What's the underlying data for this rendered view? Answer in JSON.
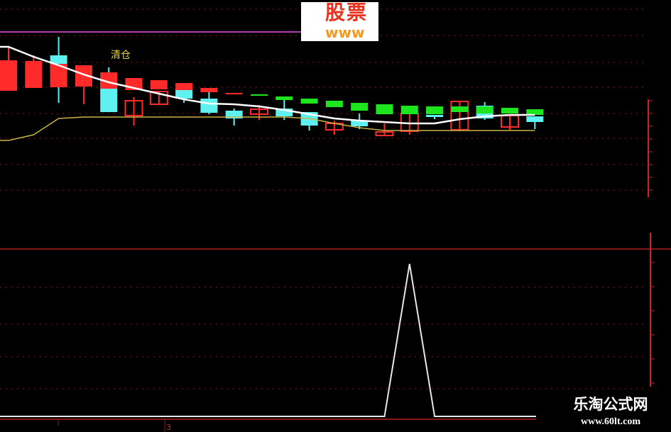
{
  "chart_data": {
    "type": "candlestick",
    "title": "",
    "panels": [
      "price",
      "indicator"
    ],
    "signal_label": "清仓",
    "x_tick_label": "3",
    "colors": {
      "up": "#ff2a2a",
      "down": "#5ff0f0",
      "signal_green": "#1ee61e",
      "signal_red": "#ff2a2a",
      "ma": "#ffffff",
      "support": "#c8b44a",
      "grid": "#8a1a1a",
      "resistance": "#b040b0"
    },
    "candles": [
      {
        "body": [
          21.5,
          17.2
        ],
        "wick": [
          23.3,
          17.2
        ],
        "style": "red-filled"
      },
      {
        "body": [
          21.4,
          17.6
        ],
        "wick": [
          22.2,
          17.6
        ],
        "style": "red-filled"
      },
      {
        "body": [
          22.2,
          19.7
        ],
        "wick": [
          24.8,
          15.5
        ],
        "style": "cyan",
        "overlay": [
          21.0,
          17.7
        ],
        "overlay_style": "red-filled"
      },
      {
        "body": [
          20.8,
          17.8
        ],
        "wick": [
          20.8,
          15.3
        ],
        "style": "red-filled"
      },
      {
        "body": [
          18.6,
          14.2
        ],
        "wick": [
          20.5,
          14.2
        ],
        "style": "cyan",
        "overlay": [
          19.8,
          17.5
        ],
        "overlay_style": "red-filled"
      },
      {
        "body": [
          15.8,
          13.7
        ],
        "wick": [
          16.3,
          12.3
        ],
        "style": "red-hollow",
        "overlay": [
          19.0,
          17.3
        ],
        "overlay_style": "red-filled"
      },
      {
        "body": [
          17.1,
          15.3
        ],
        "wick": [
          17.1,
          15.3
        ],
        "style": "red-hollow",
        "overlay": [
          18.7,
          17.4
        ],
        "overlay_style": "red-filled"
      },
      {
        "body": [
          17.6,
          16.1
        ],
        "wick": [
          17.6,
          15.5
        ],
        "style": "cyan",
        "overlay": [
          18.3,
          17.3
        ],
        "overlay_style": "red-filled"
      },
      {
        "body": [
          16.1,
          14.1
        ],
        "wick": [
          17.0,
          13.9
        ],
        "style": "cyan",
        "overlay": [
          17.6,
          17.0
        ],
        "overlay_style": "red-filled"
      },
      {
        "body": [
          14.4,
          13.3
        ],
        "wick": [
          14.7,
          12.3
        ],
        "style": "cyan",
        "overlay": [
          16.9,
          16.7
        ],
        "overlay_style": "red-filled"
      },
      {
        "body": [
          14.6,
          13.9
        ],
        "wick": [
          15.2,
          13.1
        ],
        "style": "red-hollow",
        "overlay": [
          16.7,
          16.5
        ],
        "overlay_style": "green"
      },
      {
        "body": [
          14.7,
          13.6
        ],
        "wick": [
          16.4,
          13.1
        ],
        "style": "cyan",
        "overlay": [
          16.4,
          15.9
        ],
        "overlay_style": "green"
      },
      {
        "body": [
          14.2,
          12.3
        ],
        "wick": [
          14.2,
          11.6
        ],
        "style": "cyan",
        "overlay": [
          16.1,
          15.4
        ],
        "overlay_style": "green"
      },
      {
        "body": [
          12.6,
          11.7
        ],
        "wick": [
          13.0,
          11.0
        ],
        "style": "red-hollow",
        "overlay": [
          15.8,
          14.9
        ],
        "overlay_style": "green"
      },
      {
        "body": [
          13.0,
          12.2
        ],
        "wick": [
          14.0,
          11.8
        ],
        "style": "cyan",
        "overlay": [
          15.5,
          14.4
        ],
        "overlay_style": "green"
      },
      {
        "body": [
          11.4,
          10.9
        ],
        "wick": [
          12.6,
          10.9
        ],
        "style": "red-hollow",
        "overlay": [
          15.3,
          13.9
        ],
        "overlay_style": "green"
      },
      {
        "body": [
          14.0,
          11.5
        ],
        "wick": [
          14.0,
          11.0
        ],
        "style": "red-hollow",
        "overlay": [
          15.1,
          13.9
        ],
        "overlay_style": "green"
      },
      {
        "body": [
          13.8,
          13.5
        ],
        "wick": [
          13.8,
          13.2
        ],
        "style": "cyan",
        "overlay": [
          15.0,
          13.9
        ],
        "overlay_style": "green"
      },
      {
        "body": [
          15.7,
          11.7
        ],
        "wick": [
          15.7,
          11.5
        ],
        "style": "red-hollow",
        "overlay": [
          15.0,
          14.2
        ],
        "overlay_style": "green"
      },
      {
        "body": [
          15.1,
          13.3
        ],
        "wick": [
          15.6,
          13.1
        ],
        "style": "cyan",
        "overlay": [
          15.0,
          14.0
        ],
        "overlay_style": "green"
      },
      {
        "body": [
          13.7,
          12.1
        ],
        "wick": [
          13.7,
          11.7
        ],
        "style": "red-hollow",
        "overlay": [
          14.8,
          14.0
        ],
        "overlay_style": "green"
      },
      {
        "body": [
          13.6,
          12.8
        ],
        "wick": [
          13.6,
          11.8
        ],
        "style": "cyan",
        "overlay": [
          14.6,
          13.8
        ],
        "overlay_style": "green"
      }
    ],
    "ma_line": [
      23.4,
      22.0,
      20.8,
      19.5,
      18.4,
      17.6,
      16.8,
      16.0,
      15.4,
      15.3,
      15.0,
      14.5,
      13.9,
      13.3,
      13.0,
      12.8,
      12.6,
      12.6,
      13.2,
      13.6,
      13.8,
      13.8
    ],
    "support_line": [
      10.2,
      11.0,
      13.3,
      13.5,
      13.5,
      13.5,
      13.5,
      13.5,
      13.5,
      13.5,
      13.5,
      13.5,
      13.3,
      12.6,
      12.0,
      11.6,
      11.6,
      11.6,
      11.6,
      11.6,
      11.6,
      11.6
    ],
    "indicator": [
      0,
      0,
      0,
      0,
      0,
      0,
      0,
      0,
      0,
      0,
      0,
      0,
      0,
      0,
      0,
      0,
      1,
      0,
      0,
      0,
      0,
      0
    ]
  },
  "logo": {
    "text": "股票",
    "sub": "www"
  },
  "watermark": {
    "name": "乐淘公式网",
    "url": "www.60lt.com"
  }
}
